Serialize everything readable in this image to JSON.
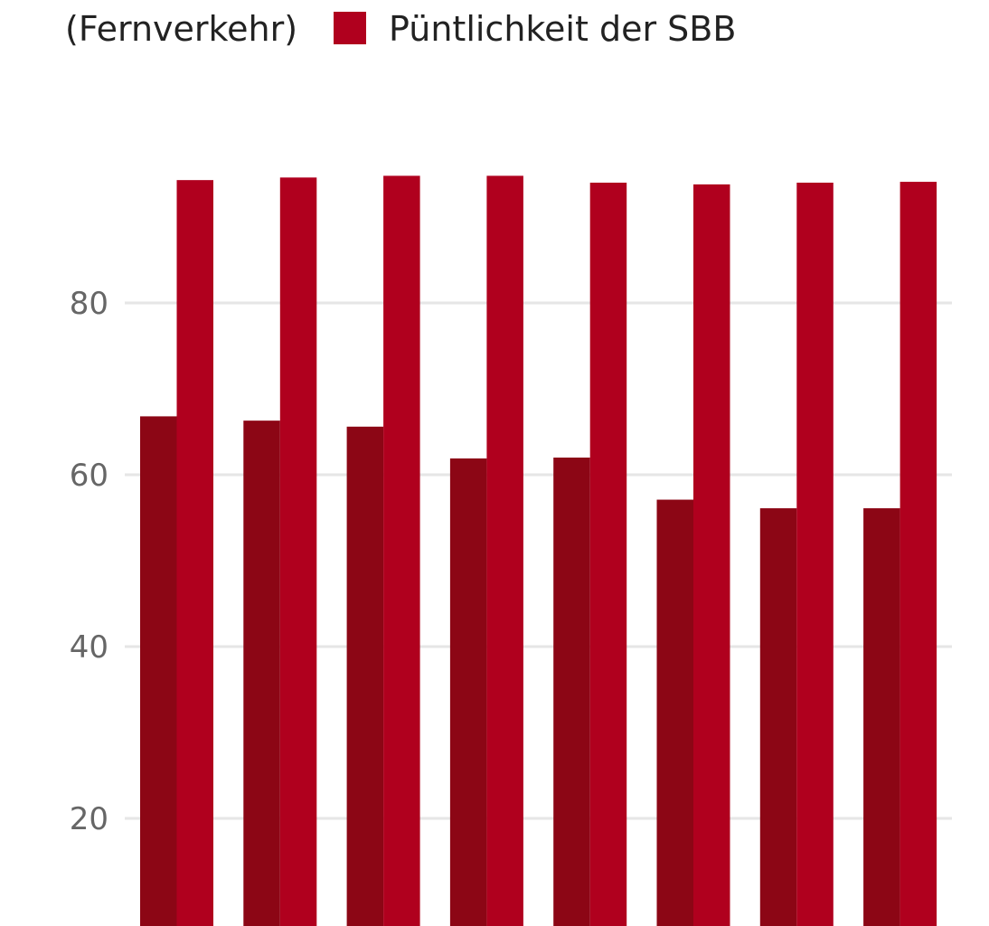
{
  "chart_data": {
    "type": "bar",
    "title": "",
    "xlabel": "",
    "ylabel": "",
    "ylim": [
      0,
      100
    ],
    "grid": true,
    "legend_placement": "top",
    "yticks": [
      20,
      40,
      60,
      80
    ],
    "categories": [
      "",
      "",
      "",
      "",
      "",
      "",
      "",
      ""
    ],
    "series": [
      {
        "name": "(Fernverkehr)",
        "color": "#8c0615",
        "values": [
          66.8,
          66.3,
          65.6,
          61.9,
          62.0,
          57.1,
          56.1,
          56.1
        ]
      },
      {
        "name": "Püntlichkeit der SBB",
        "color": "#b0001e",
        "values": [
          94.3,
          94.6,
          94.8,
          94.8,
          94.0,
          93.8,
          94.0,
          94.1
        ]
      }
    ]
  }
}
